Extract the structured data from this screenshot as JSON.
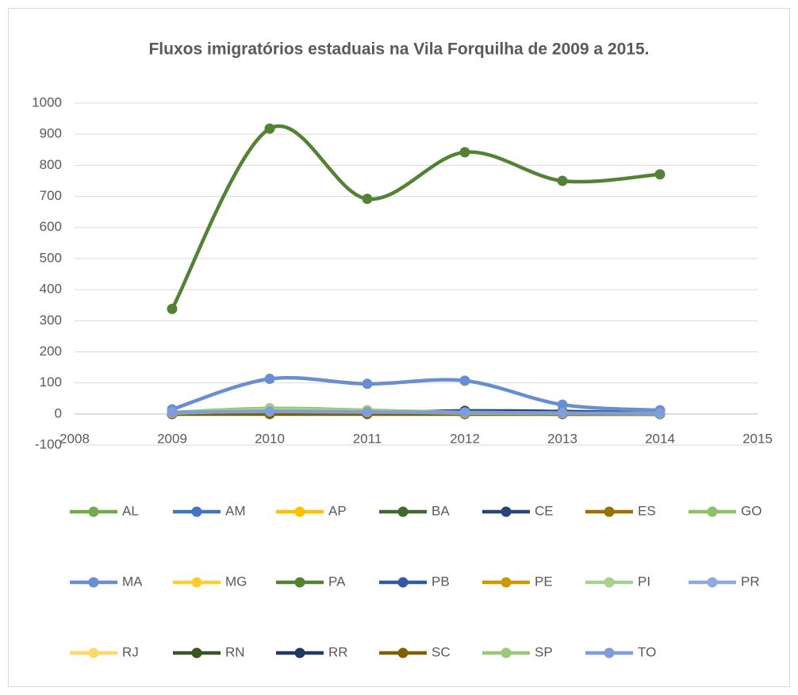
{
  "chart_data": {
    "type": "line",
    "smooth": true,
    "title": "Fluxos imigratórios estaduais na Vila Forquilha de 2009 a 2015.",
    "x": [
      2009,
      2010,
      2011,
      2012,
      2013,
      2014
    ],
    "xlim": [
      2008,
      2015
    ],
    "xticks": [
      2008,
      2009,
      2010,
      2011,
      2012,
      2013,
      2014,
      2015
    ],
    "ylim": [
      -100,
      1000
    ],
    "yticks": [
      -100,
      0,
      100,
      200,
      300,
      400,
      500,
      600,
      700,
      800,
      900,
      1000
    ],
    "grid": true,
    "legend": "bottom",
    "series": [
      {
        "name": "AL",
        "color": "#70ad47",
        "values": [
          3,
          5,
          4,
          3,
          2,
          2
        ]
      },
      {
        "name": "AM",
        "color": "#4472c4",
        "values": [
          1,
          2,
          1,
          1,
          1,
          0
        ]
      },
      {
        "name": "AP",
        "color": "#ffc000",
        "values": [
          0,
          1,
          0,
          0,
          0,
          0
        ]
      },
      {
        "name": "BA",
        "color": "#43682b",
        "values": [
          2,
          3,
          2,
          2,
          1,
          1
        ]
      },
      {
        "name": "CE",
        "color": "#264478",
        "values": [
          2,
          3,
          3,
          10,
          8,
          3
        ]
      },
      {
        "name": "ES",
        "color": "#997300",
        "values": [
          0,
          0,
          0,
          0,
          0,
          0
        ]
      },
      {
        "name": "GO",
        "color": "#8cc168",
        "values": [
          5,
          18,
          12,
          5,
          3,
          2
        ]
      },
      {
        "name": "MA",
        "color": "#698ed0",
        "values": [
          15,
          113,
          97,
          107,
          30,
          12
        ]
      },
      {
        "name": "MG",
        "color": "#ffcd33",
        "values": [
          1,
          2,
          1,
          1,
          0,
          0
        ]
      },
      {
        "name": "PA",
        "color": "#548235",
        "values": [
          338,
          918,
          692,
          842,
          750,
          771
        ]
      },
      {
        "name": "PB",
        "color": "#335aa1",
        "values": [
          1,
          2,
          1,
          1,
          1,
          0
        ]
      },
      {
        "name": "PE",
        "color": "#cc9a00",
        "values": [
          1,
          1,
          1,
          0,
          0,
          0
        ]
      },
      {
        "name": "PI",
        "color": "#a9d18e",
        "values": [
          4,
          15,
          10,
          4,
          2,
          1
        ]
      },
      {
        "name": "PR",
        "color": "#8faadc",
        "values": [
          1,
          2,
          1,
          1,
          1,
          0
        ]
      },
      {
        "name": "RJ",
        "color": "#ffd966",
        "values": [
          0,
          1,
          0,
          0,
          0,
          0
        ]
      },
      {
        "name": "RN",
        "color": "#375623",
        "values": [
          1,
          2,
          1,
          1,
          0,
          0
        ]
      },
      {
        "name": "RR",
        "color": "#203864",
        "values": [
          0,
          1,
          1,
          2,
          1,
          0
        ]
      },
      {
        "name": "SC",
        "color": "#7f6000",
        "values": [
          0,
          0,
          0,
          0,
          0,
          0
        ]
      },
      {
        "name": "SP",
        "color": "#9bc97a",
        "values": [
          3,
          10,
          8,
          3,
          2,
          1
        ]
      },
      {
        "name": "TO",
        "color": "#7f9ed9",
        "values": [
          5,
          8,
          6,
          5,
          3,
          2
        ]
      }
    ]
  }
}
